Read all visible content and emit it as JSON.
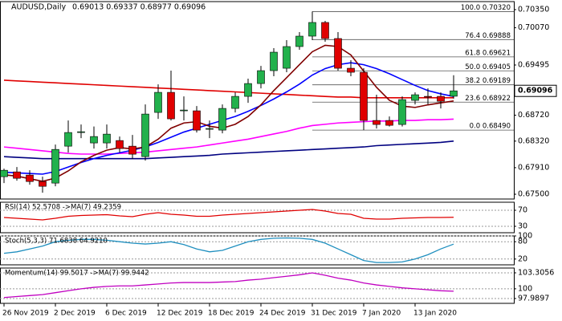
{
  "chart_data": {
    "type": "candlestick",
    "title": "AUDUSD,Daily",
    "subtitle": "0.69013 0.69337 0.68977 0.69096",
    "categories": [
      "26 Nov 2019",
      null,
      null,
      null,
      "2 Dec 2019",
      null,
      null,
      null,
      "6 Dec 2019",
      null,
      null,
      null,
      "12 Dec 2019",
      null,
      null,
      null,
      "18 Dec 2019",
      null,
      null,
      null,
      "24 Dec 2019",
      null,
      null,
      null,
      "31 Dec 2019",
      null,
      null,
      null,
      "7 Jan 2020",
      null,
      null,
      null,
      "13 Jan 2020",
      null,
      null,
      null
    ],
    "open": [
      0.67771,
      0.67845,
      0.67796,
      0.67696,
      0.67672,
      0.68242,
      0.68453,
      0.68292,
      0.68292,
      0.68329,
      0.68242,
      0.68081,
      0.68763,
      0.69073,
      0.68788,
      0.68788,
      0.68515,
      0.6849,
      0.68825,
      0.69011,
      0.69209,
      0.69408,
      0.69445,
      0.6978,
      0.69941,
      0.70152,
      0.69904,
      0.69445,
      0.69383,
      0.68639,
      0.68639,
      0.68577,
      0.68949,
      0.69011,
      0.69011,
      0.69013
    ],
    "high": [
      0.67895,
      0.6792,
      0.6787,
      0.67771,
      0.68267,
      0.68639,
      0.68577,
      0.68546,
      0.68577,
      0.68391,
      0.68416,
      0.68887,
      0.69197,
      0.69408,
      0.69011,
      0.68862,
      0.68639,
      0.68887,
      0.69073,
      0.69284,
      0.69482,
      0.69755,
      0.69879,
      0.70003,
      0.7032,
      0.70176,
      0.70003,
      0.69569,
      0.69445,
      0.69036,
      0.68701,
      0.69011,
      0.69073,
      0.69135,
      0.69073,
      0.69337
    ],
    "low": [
      0.67672,
      0.67709,
      0.67647,
      0.67523,
      0.67622,
      0.68143,
      0.68366,
      0.68205,
      0.68205,
      0.68143,
      0.68044,
      0.68019,
      0.68664,
      0.68639,
      0.68639,
      0.68453,
      0.68366,
      0.6844,
      0.68763,
      0.68912,
      0.69135,
      0.69321,
      0.69383,
      0.6973,
      0.69879,
      0.69854,
      0.69408,
      0.69321,
      0.6849,
      0.68515,
      0.68546,
      0.68546,
      0.68887,
      0.68887,
      0.68825,
      0.68977
    ],
    "close": [
      0.6787,
      0.67746,
      0.67696,
      0.67622,
      0.68192,
      0.68453,
      0.68465,
      0.68391,
      0.68428,
      0.68205,
      0.68118,
      0.68738,
      0.69073,
      0.68664,
      0.688,
      0.6849,
      0.68515,
      0.68825,
      0.69011,
      0.69209,
      0.69408,
      0.69693,
      0.6978,
      0.69941,
      0.70152,
      0.69904,
      0.69445,
      0.69383,
      0.68639,
      0.68577,
      0.68564,
      0.68961,
      0.69036,
      0.69,
      0.68936,
      0.69096
    ],
    "up_color": "#22b14c",
    "down_color": "#e00000",
    "ylim": [
      0.67426,
      0.70474
    ],
    "yticks": [
      {
        "value": 0.7035,
        "label": "0.70350"
      },
      {
        "value": 0.7007,
        "label": "0.70070"
      },
      0.69495,
      {
        "value": 0.6872,
        "label": "0.68720"
      },
      {
        "value": 0.6832,
        "label": "0.68320"
      },
      {
        "value": 0.6791,
        "label": "0.67910"
      },
      {
        "value": 0.675,
        "label": "0.67500"
      }
    ],
    "last_price": 0.69096,
    "fib_levels": [
      {
        "value": 0.7032,
        "label": "100.0 0.70320"
      },
      {
        "value": 0.69888,
        "label": "76.4 0.69888"
      },
      {
        "value": 0.69621,
        "label": "61.8 0.69621"
      },
      {
        "value": 0.69405,
        "label": "50.0 0.69405"
      },
      {
        "value": 0.69189,
        "label": "38.2 0.69189"
      },
      {
        "value": 0.68922,
        "label": "23.6 0.68922"
      },
      {
        "value": 0.6849,
        "label": "0.0 0.68490"
      }
    ],
    "series": [
      {
        "color": "#e00000",
        "values": [
          0.6926,
          0.6925,
          0.6924,
          0.6923,
          0.6922,
          0.6921,
          0.692,
          0.6919,
          0.6918,
          0.6917,
          0.6916,
          0.6915,
          0.6914,
          0.6913,
          0.6912,
          0.6911,
          0.691,
          0.6909,
          0.6908,
          0.6907,
          0.6906,
          0.6905,
          0.6904,
          0.6903,
          0.6902,
          0.6901,
          0.69,
          0.69,
          0.6899,
          0.6899,
          0.6899,
          0.6899,
          0.6899,
          0.6899,
          0.6899,
          0.6899
        ]
      },
      {
        "color": "#000080",
        "values": [
          0.6808,
          0.6807,
          0.6806,
          0.6805,
          0.6805,
          0.6805,
          0.6805,
          0.6805,
          0.6805,
          0.6805,
          0.6805,
          0.6805,
          0.6806,
          0.6807,
          0.6808,
          0.6809,
          0.681,
          0.6812,
          0.6813,
          0.6814,
          0.6815,
          0.6816,
          0.6817,
          0.6818,
          0.6819,
          0.682,
          0.6821,
          0.6822,
          0.6823,
          0.6825,
          0.6826,
          0.6827,
          0.6828,
          0.6829,
          0.683,
          0.6832
        ]
      },
      {
        "color": "#ff00ff",
        "values": [
          0.6823,
          0.6821,
          0.6819,
          0.6817,
          0.6815,
          0.6813,
          0.6812,
          0.6812,
          0.6812,
          0.6813,
          0.6814,
          0.6815,
          0.6817,
          0.6819,
          0.6821,
          0.6823,
          0.6826,
          0.6829,
          0.6832,
          0.6835,
          0.6839,
          0.6843,
          0.6847,
          0.6852,
          0.6856,
          0.6858,
          0.686,
          0.6861,
          0.6862,
          0.6863,
          0.6863,
          0.6864,
          0.6864,
          0.6865,
          0.6865,
          0.6866
        ]
      },
      {
        "color": "#0000ff",
        "values": [
          0.6784,
          0.6783,
          0.6782,
          0.6781,
          0.6785,
          0.6792,
          0.6799,
          0.6805,
          0.681,
          0.6814,
          0.6818,
          0.6823,
          0.683,
          0.6838,
          0.6846,
          0.6852,
          0.6858,
          0.6864,
          0.687,
          0.6878,
          0.6887,
          0.6897,
          0.6908,
          0.692,
          0.6934,
          0.6944,
          0.695,
          0.6953,
          0.695,
          0.6944,
          0.6936,
          0.6927,
          0.6918,
          0.691,
          0.6905,
          0.6901
        ]
      },
      {
        "color": "#800000",
        "values": [
          0.678,
          0.6778,
          0.6774,
          0.677,
          0.6775,
          0.6786,
          0.68,
          0.681,
          0.6818,
          0.6822,
          0.682,
          0.6823,
          0.6835,
          0.6852,
          0.686,
          0.6862,
          0.6855,
          0.6852,
          0.6858,
          0.687,
          0.6888,
          0.691,
          0.693,
          0.695,
          0.697,
          0.698,
          0.6978,
          0.6965,
          0.694,
          0.6915,
          0.6895,
          0.6886,
          0.6884,
          0.6888,
          0.6891,
          0.6894
        ]
      }
    ],
    "indicators": [
      {
        "type": "line",
        "title": "RSI(14) 52.5708 ->MA(7) 49.2359",
        "ylim": [
          14,
          90
        ],
        "yticks": [
          70,
          30
        ],
        "series": [
          {
            "color": "#e00000",
            "values": [
              52,
              50,
              48,
              46,
              50,
              55,
              57,
              58,
              59,
              56,
              54,
              60,
              64,
              60,
              58,
              55,
              55,
              58,
              60,
              62,
              64,
              66,
              68,
              70,
              72,
              68,
              62,
              60,
              50,
              48,
              48,
              50,
              51,
              52,
              52,
              52.57
            ]
          }
        ]
      },
      {
        "type": "line",
        "title": "Stoch(5,3,3) 71.6838 64.9210",
        "ylim": [
          0,
          100
        ],
        "yticks": [
          100,
          80,
          20
        ],
        "series": [
          {
            "color": "#1f8fbf",
            "values": [
              40,
              45,
              55,
              65,
              80,
              85,
              88,
              88,
              85,
              80,
              75,
              72,
              75,
              80,
              70,
              55,
              45,
              50,
              65,
              80,
              88,
              92,
              93,
              92,
              88,
              75,
              55,
              35,
              15,
              8,
              8,
              10,
              20,
              35,
              55,
              71.68
            ]
          }
        ]
      },
      {
        "type": "line",
        "title": "Momentum(14) 99.5017 ->MA(7) 99.9442",
        "ylim": [
          96.99,
          104.3
        ],
        "yticks": [
          103.3056,
          100,
          97.9897
        ],
        "series": [
          {
            "color": "#c000c0",
            "values": [
              98.2,
              98.4,
              98.6,
              98.8,
              99.2,
              99.6,
              100,
              100.3,
              100.5,
              100.6,
              100.6,
              100.8,
              101,
              101.2,
              101.3,
              101.3,
              101.3,
              101.4,
              101.5,
              101.8,
              102,
              102.3,
              102.6,
              102.9,
              103.3,
              102.8,
              102.2,
              101.8,
              101.2,
              100.8,
              100.5,
              100.2,
              100,
              99.8,
              99.6,
              99.5017
            ]
          }
        ]
      }
    ]
  }
}
